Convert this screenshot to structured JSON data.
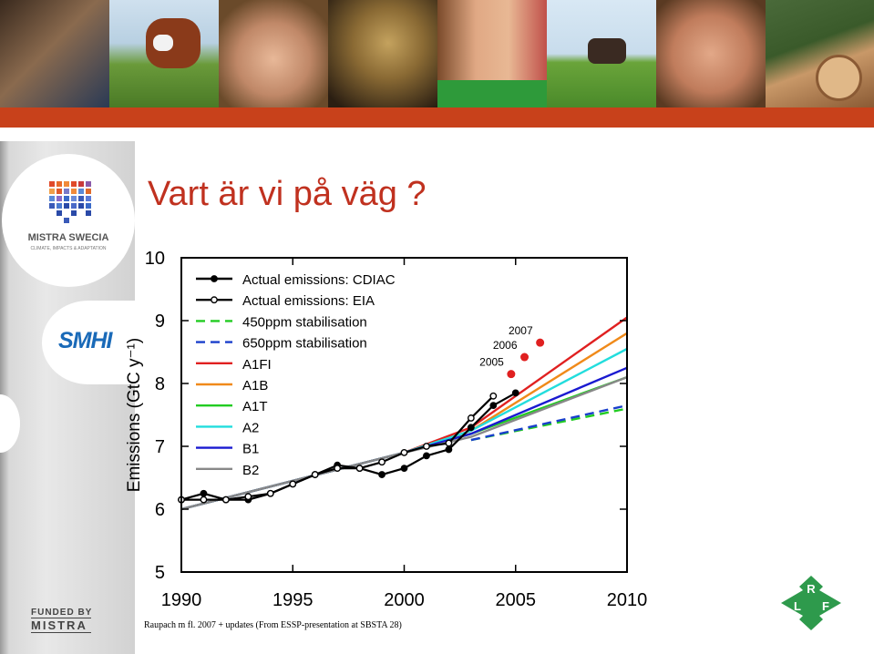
{
  "slide": {
    "title": "Vart är vi på väg ?",
    "credit": "Raupach m fl. 2007 + updates (From ESSP-presentation at SBSTA 28)"
  },
  "sidebar": {
    "mistra_swecia": "MISTRA SWECIA",
    "mistra_swecia_sub": "CLIMATE, IMPACTS & ADAPTATION",
    "smhi": "SMHI",
    "funded_by": "FUNDED BY",
    "mistra": "MISTRA"
  },
  "lrf_logo": {
    "r": "R",
    "l": "L",
    "f": "F"
  },
  "colors": {
    "accent_red": "#c8411b",
    "title_red": "#c0311f",
    "lrf_green": "#2e9a4c"
  },
  "banner_images": [
    "men-portrait",
    "cows-in-field",
    "woman-portrait",
    "hands-with-potatoes",
    "smiling-couple",
    "horses-in-field",
    "man-portrait",
    "forest-logs"
  ],
  "chart_data": {
    "type": "line",
    "xlabel": "",
    "ylabel": "Emissions (GtC y⁻¹)",
    "xlim": [
      1990,
      2010
    ],
    "ylim": [
      5,
      10
    ],
    "xticks": [
      1990,
      1995,
      2000,
      2005,
      2010
    ],
    "yticks": [
      5,
      6,
      7,
      8,
      9,
      10
    ],
    "legend_position": "top-left",
    "series": [
      {
        "name": "Actual emissions: CDIAC",
        "color": "#000000",
        "dash": "solid",
        "marker": "filled",
        "x": [
          1990,
          1991,
          1992,
          1993,
          1994,
          1995,
          1996,
          1997,
          1998,
          1999,
          2000,
          2001,
          2002,
          2003,
          2004,
          2005
        ],
        "y": [
          6.15,
          6.25,
          6.15,
          6.15,
          6.25,
          6.4,
          6.55,
          6.7,
          6.65,
          6.55,
          6.65,
          6.85,
          6.95,
          7.3,
          7.65,
          7.85
        ]
      },
      {
        "name": "Actual emissions: EIA",
        "color": "#000000",
        "dash": "solid",
        "marker": "open",
        "x": [
          1990,
          1991,
          1992,
          1993,
          1994,
          1995,
          1996,
          1997,
          1998,
          1999,
          2000,
          2001,
          2002,
          2003,
          2004
        ],
        "y": [
          6.15,
          6.15,
          6.15,
          6.2,
          6.25,
          6.4,
          6.55,
          6.65,
          6.65,
          6.75,
          6.9,
          7.0,
          7.05,
          7.45,
          7.8
        ]
      },
      {
        "name": "450ppm stabilisation",
        "color": "#22cc22",
        "dash": "dashed",
        "x": [
          2003,
          2010
        ],
        "y": [
          7.1,
          7.6
        ]
      },
      {
        "name": "650ppm stabilisation",
        "color": "#1a3fcc",
        "dash": "dashed",
        "x": [
          2003,
          2010
        ],
        "y": [
          7.1,
          7.65
        ]
      },
      {
        "name": "A1FI",
        "color": "#e02020",
        "dash": "solid",
        "x": [
          1990,
          2000,
          2003,
          2010
        ],
        "y": [
          6.0,
          6.9,
          7.3,
          9.05
        ]
      },
      {
        "name": "A1B",
        "color": "#f08a1a",
        "dash": "solid",
        "x": [
          1990,
          2000,
          2003,
          2010
        ],
        "y": [
          6.0,
          6.9,
          7.25,
          8.8
        ]
      },
      {
        "name": "A1T",
        "color": "#22cc22",
        "dash": "solid",
        "x": [
          1990,
          2000,
          2003,
          2010
        ],
        "y": [
          6.0,
          6.9,
          7.2,
          8.1
        ]
      },
      {
        "name": "A2",
        "color": "#22dddd",
        "dash": "solid",
        "x": [
          1990,
          2000,
          2003,
          2010
        ],
        "y": [
          6.0,
          6.9,
          7.25,
          8.55
        ]
      },
      {
        "name": "B1",
        "color": "#1a1ad0",
        "dash": "solid",
        "x": [
          1990,
          2000,
          2003,
          2010
        ],
        "y": [
          6.0,
          6.9,
          7.2,
          8.25
        ]
      },
      {
        "name": "B2",
        "color": "#888888",
        "dash": "solid",
        "x": [
          1990,
          2000,
          2003,
          2010
        ],
        "y": [
          6.0,
          6.9,
          7.15,
          8.1
        ]
      }
    ],
    "annotations": [
      {
        "label": "2005",
        "x": 2004.8,
        "y": 8.15,
        "color": "#e02020"
      },
      {
        "label": "2006",
        "x": 2005.4,
        "y": 8.42,
        "color": "#e02020"
      },
      {
        "label": "2007",
        "x": 2006.1,
        "y": 8.65,
        "color": "#e02020"
      }
    ]
  }
}
